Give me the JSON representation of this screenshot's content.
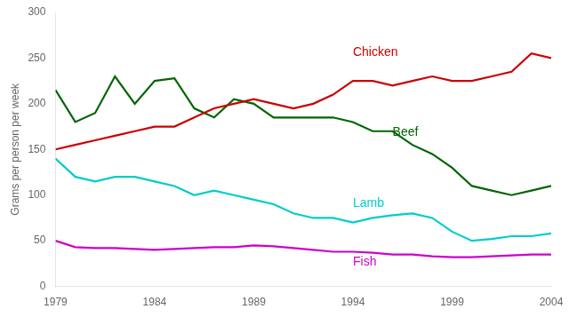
{
  "chart_data": {
    "type": "line",
    "y_label": "Grams per person per week",
    "x": [
      1979,
      1980,
      1981,
      1982,
      1983,
      1984,
      1985,
      1986,
      1987,
      1988,
      1989,
      1990,
      1991,
      1992,
      1993,
      1994,
      1995,
      1996,
      1997,
      1998,
      1999,
      2000,
      2001,
      2002,
      2003,
      2004
    ],
    "series": [
      {
        "color": "#cc0000",
        "values": [
          150,
          155,
          160,
          165,
          170,
          175,
          175,
          185,
          195,
          200,
          205,
          200,
          195,
          200,
          210,
          225,
          225,
          220,
          225,
          230,
          225,
          225,
          230,
          235,
          255,
          250
        ]
      },
      {
        "color": "#006600",
        "values": [
          215,
          180,
          190,
          230,
          200,
          225,
          228,
          195,
          185,
          205,
          200,
          185,
          185,
          185,
          185,
          180,
          170,
          170,
          155,
          145,
          130,
          110,
          105,
          100,
          105,
          110
        ]
      },
      {
        "color": "#00cccc",
        "values": [
          140,
          120,
          115,
          120,
          120,
          115,
          110,
          100,
          105,
          100,
          95,
          90,
          80,
          75,
          75,
          70,
          75,
          78,
          80,
          75,
          60,
          50,
          52,
          55,
          55,
          58
        ]
      },
      {
        "color": "#cc00cc",
        "values": [
          50,
          43,
          42,
          42,
          41,
          40,
          41,
          42,
          43,
          43,
          45,
          44,
          42,
          40,
          38,
          38,
          37,
          35,
          35,
          33,
          32,
          32,
          33,
          34,
          35,
          35
        ]
      }
    ],
    "annotations": [
      {
        "text": "Chicken",
        "x": 1994,
        "y": 252,
        "color": "#cc0000"
      },
      {
        "text": "Beef",
        "x": 1996,
        "y": 165,
        "color": "#006600"
      },
      {
        "text": "Lamb",
        "x": 1994,
        "y": 87,
        "color": "#00cccc"
      },
      {
        "text": "Fish",
        "x": 1994,
        "y": 23,
        "color": "#cc00cc"
      }
    ],
    "xlim": [
      1979,
      2004
    ],
    "xticks": [
      1979,
      1984,
      1989,
      1994,
      1999,
      2004
    ],
    "ylim": [
      0,
      300
    ],
    "yticks": [
      0,
      50,
      100,
      150,
      200,
      250,
      300
    ],
    "grid": false
  }
}
